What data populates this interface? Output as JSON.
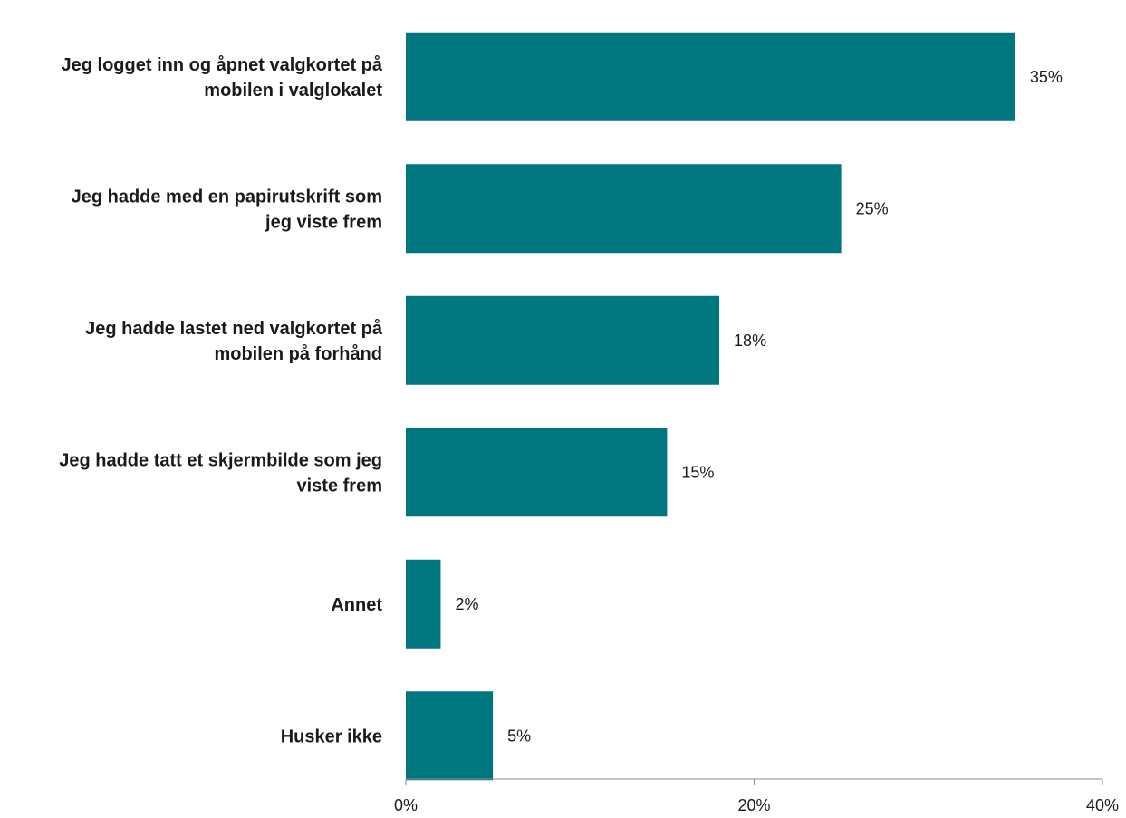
{
  "chart_data": {
    "type": "bar",
    "orientation": "horizontal",
    "categories": [
      [
        "Jeg logget inn og åpnet valgkortet på",
        "mobilen i valglokalet"
      ],
      [
        "Jeg hadde med en papirutskrift som",
        "jeg viste frem"
      ],
      [
        "Jeg hadde lastet ned valgkortet på",
        "mobilen på forhånd"
      ],
      [
        "Jeg hadde tatt et skjermbilde som jeg",
        "viste frem"
      ],
      [
        "Annet"
      ],
      [
        "Husker ikke"
      ]
    ],
    "values": [
      35,
      25,
      18,
      15,
      2,
      5
    ],
    "value_labels": [
      "35%",
      "25%",
      "18%",
      "15%",
      "2%",
      "5%"
    ],
    "xlim": [
      0,
      40
    ],
    "x_ticks": [
      0,
      20,
      40
    ],
    "x_tick_labels": [
      "0%",
      "20%",
      "40%"
    ],
    "bar_color": "#00767E",
    "axis_color": "#8c8c8c",
    "grid": false,
    "legend": "none"
  }
}
